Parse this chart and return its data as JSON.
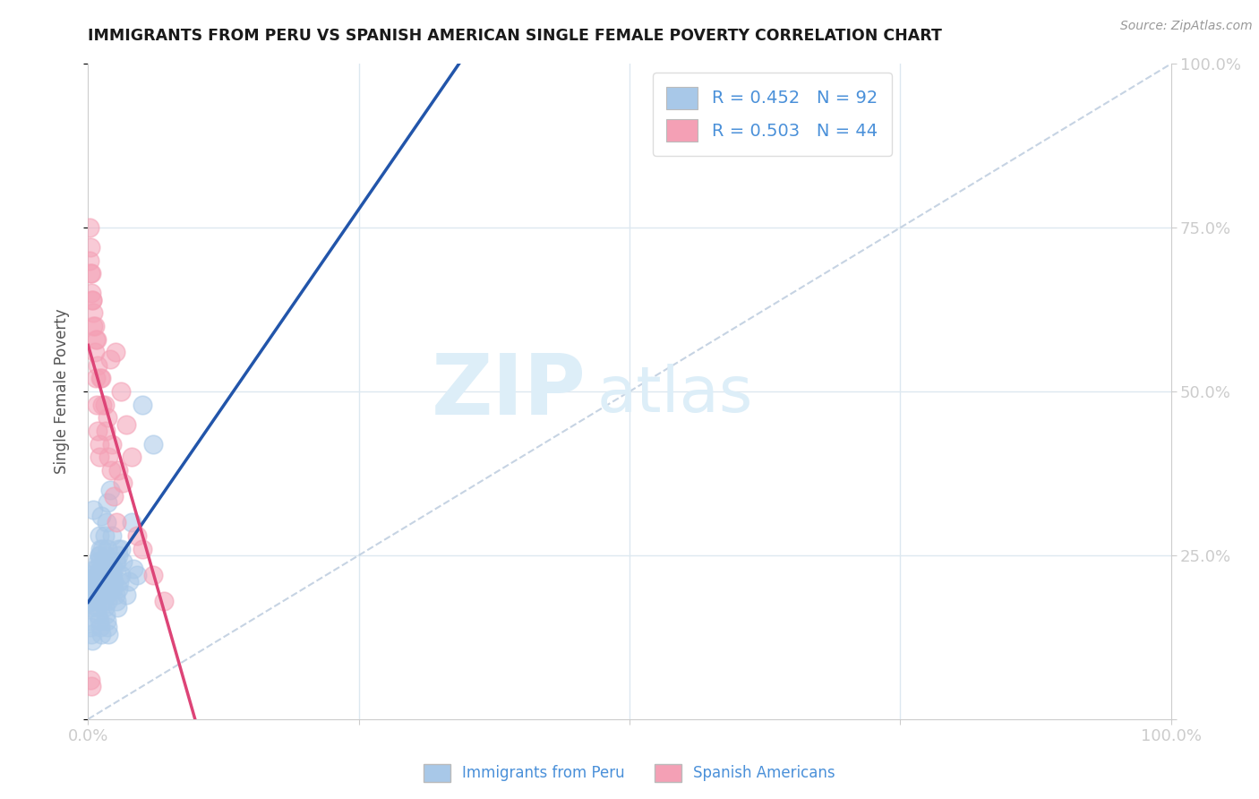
{
  "title": "IMMIGRANTS FROM PERU VS SPANISH AMERICAN SINGLE FEMALE POVERTY CORRELATION CHART",
  "source": "Source: ZipAtlas.com",
  "ylabel": "Single Female Poverty",
  "R_blue": 0.452,
  "N_blue": 92,
  "R_pink": 0.503,
  "N_pink": 44,
  "color_blue": "#a8c8e8",
  "color_pink": "#f4a0b5",
  "color_blue_line": "#2255aa",
  "color_pink_line": "#dd4477",
  "color_diag_line": "#c0cfe0",
  "axis_label_color": "#4a90d9",
  "title_color": "#1a1a1a",
  "background_color": "#ffffff",
  "grid_color": "#dde8f0",
  "xlim": [
    0.0,
    1.0
  ],
  "ylim": [
    0.0,
    1.0
  ],
  "watermark_zip": "ZIP",
  "watermark_atlas": "atlas",
  "watermark_color": "#ddeef8",
  "blue_x": [
    0.02,
    0.01,
    0.005,
    0.03,
    0.04,
    0.025,
    0.015,
    0.01,
    0.008,
    0.006,
    0.035,
    0.045,
    0.02,
    0.012,
    0.018,
    0.022,
    0.028,
    0.032,
    0.038,
    0.042,
    0.005,
    0.007,
    0.009,
    0.011,
    0.013,
    0.015,
    0.017,
    0.003,
    0.004,
    0.006,
    0.008,
    0.01,
    0.012,
    0.014,
    0.016,
    0.018,
    0.02,
    0.022,
    0.024,
    0.026,
    0.028,
    0.03,
    0.002,
    0.003,
    0.004,
    0.005,
    0.006,
    0.007,
    0.008,
    0.009,
    0.01,
    0.011,
    0.012,
    0.013,
    0.014,
    0.015,
    0.016,
    0.017,
    0.018,
    0.019,
    0.02,
    0.021,
    0.022,
    0.023,
    0.024,
    0.025,
    0.026,
    0.027,
    0.028,
    0.029,
    0.003,
    0.004,
    0.005,
    0.006,
    0.007,
    0.008,
    0.009,
    0.01,
    0.011,
    0.012,
    0.013,
    0.014,
    0.015,
    0.016,
    0.017,
    0.018,
    0.001,
    0.002,
    0.003,
    0.004,
    0.05,
    0.06
  ],
  "blue_y": [
    0.22,
    0.28,
    0.32,
    0.26,
    0.3,
    0.24,
    0.2,
    0.25,
    0.21,
    0.23,
    0.19,
    0.22,
    0.35,
    0.31,
    0.33,
    0.28,
    0.26,
    0.24,
    0.21,
    0.23,
    0.18,
    0.2,
    0.22,
    0.24,
    0.26,
    0.28,
    0.3,
    0.18,
    0.19,
    0.2,
    0.21,
    0.22,
    0.23,
    0.24,
    0.25,
    0.26,
    0.21,
    0.22,
    0.23,
    0.24,
    0.25,
    0.22,
    0.17,
    0.18,
    0.19,
    0.2,
    0.21,
    0.22,
    0.23,
    0.24,
    0.25,
    0.26,
    0.2,
    0.19,
    0.18,
    0.17,
    0.16,
    0.15,
    0.14,
    0.13,
    0.2,
    0.21,
    0.22,
    0.2,
    0.21,
    0.19,
    0.18,
    0.17,
    0.2,
    0.21,
    0.22,
    0.21,
    0.2,
    0.19,
    0.18,
    0.17,
    0.16,
    0.15,
    0.14,
    0.13,
    0.2,
    0.21,
    0.22,
    0.2,
    0.19,
    0.18,
    0.15,
    0.14,
    0.13,
    0.12,
    0.48,
    0.42
  ],
  "pink_x": [
    0.01,
    0.02,
    0.015,
    0.005,
    0.025,
    0.03,
    0.035,
    0.04,
    0.008,
    0.012,
    0.018,
    0.022,
    0.028,
    0.032,
    0.001,
    0.003,
    0.006,
    0.009,
    0.002,
    0.004,
    0.007,
    0.011,
    0.013,
    0.016,
    0.019,
    0.021,
    0.024,
    0.026,
    0.001,
    0.002,
    0.003,
    0.004,
    0.005,
    0.006,
    0.007,
    0.008,
    0.009,
    0.01,
    0.045,
    0.05,
    0.06,
    0.07,
    0.002,
    0.003
  ],
  "pink_y": [
    0.42,
    0.55,
    0.48,
    0.62,
    0.56,
    0.5,
    0.45,
    0.4,
    0.58,
    0.52,
    0.46,
    0.42,
    0.38,
    0.36,
    0.7,
    0.65,
    0.6,
    0.54,
    0.68,
    0.64,
    0.58,
    0.52,
    0.48,
    0.44,
    0.4,
    0.38,
    0.34,
    0.3,
    0.75,
    0.72,
    0.68,
    0.64,
    0.6,
    0.56,
    0.52,
    0.48,
    0.44,
    0.4,
    0.28,
    0.26,
    0.22,
    0.18,
    0.06,
    0.05
  ]
}
